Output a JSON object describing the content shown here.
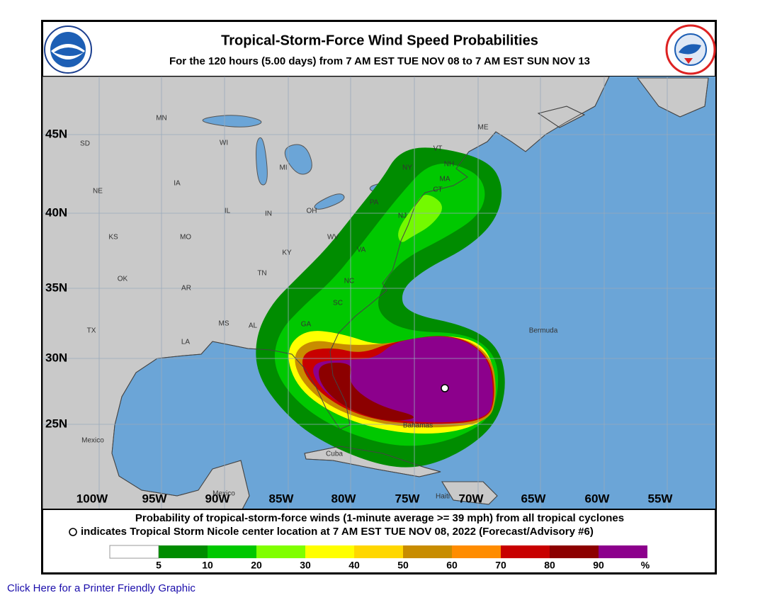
{
  "header": {
    "title": "Tropical-Storm-Force Wind Speed Probabilities",
    "subtitle": "For the 120 hours (5.00 days) from 7 AM EST TUE NOV 08 to 7 AM EST SUN NOV 13"
  },
  "map": {
    "lat_labels": [
      "45N",
      "40N",
      "35N",
      "30N",
      "25N"
    ],
    "lon_labels": [
      "100W",
      "95W",
      "90W",
      "85W",
      "80W",
      "75W",
      "70W",
      "65W",
      "60W",
      "55W"
    ],
    "place_labels": [
      "MN",
      "WI",
      "MI",
      "SD",
      "NE",
      "IA",
      "IL",
      "IN",
      "OH",
      "KS",
      "MO",
      "KY",
      "WV",
      "VA",
      "PA",
      "NY",
      "VT",
      "NH",
      "MA",
      "CT",
      "NJ",
      "TN",
      "AR",
      "OK",
      "TX",
      "LA",
      "MS",
      "AL",
      "GA",
      "SC",
      "NC",
      "ME",
      "Bermuda",
      "Bahamas",
      "Cuba",
      "Haiti",
      "Mexico",
      "Mexico"
    ],
    "colors": {
      "ocean": "#6ba5d7",
      "land": "#c9c9c9"
    }
  },
  "legend": {
    "line1": "Probability of tropical-storm-force winds (1-minute average >= 39 mph) from all tropical cyclones",
    "line2": "indicates Tropical Storm Nicole center location at 7 AM EST TUE NOV 08, 2022 (Forecast/Advisory #6)",
    "thresholds": [
      5,
      10,
      20,
      30,
      40,
      50,
      60,
      70,
      80,
      90
    ],
    "unit": "%",
    "colors": [
      "#ffffff",
      "#008c00",
      "#00c800",
      "#80ff00",
      "#ffff00",
      "#ffd700",
      "#c88c00",
      "#ff8c00",
      "#c80000",
      "#8c0000",
      "#8c008c"
    ]
  },
  "link": "Click Here for a Printer Friendly Graphic"
}
